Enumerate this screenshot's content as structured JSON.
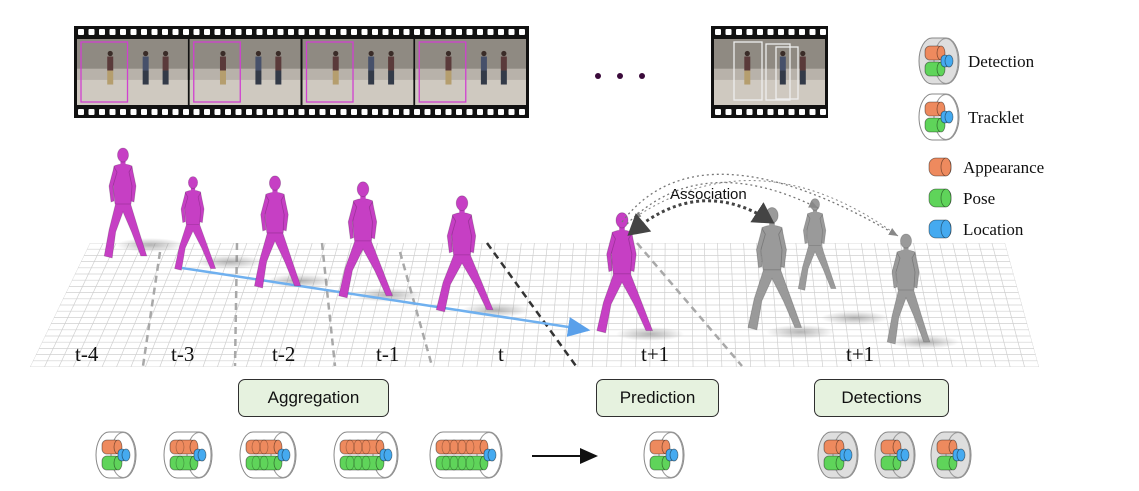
{
  "timeline": {
    "labels": [
      "t-4",
      "t-3",
      "t-2",
      "t-1",
      "t",
      "t+1",
      "t+1"
    ]
  },
  "stages": {
    "aggregation": "Aggregation",
    "prediction": "Prediction",
    "detections": "Detections"
  },
  "association_label": "Association",
  "legend": {
    "detection": "Detection",
    "tracklet": "Tracklet",
    "appearance": "Appearance",
    "pose": "Pose",
    "location": "Location"
  },
  "colors": {
    "appearance": "#ee8a5e",
    "pose": "#5fd45a",
    "location": "#45aaf0",
    "person_track": "#c63fc4",
    "person_detection": "#9a9a9a",
    "stage_fill": "#e6f2df",
    "trajectory": "#6fb0ef"
  },
  "film_strip": {
    "ellipsis": "• • •"
  }
}
